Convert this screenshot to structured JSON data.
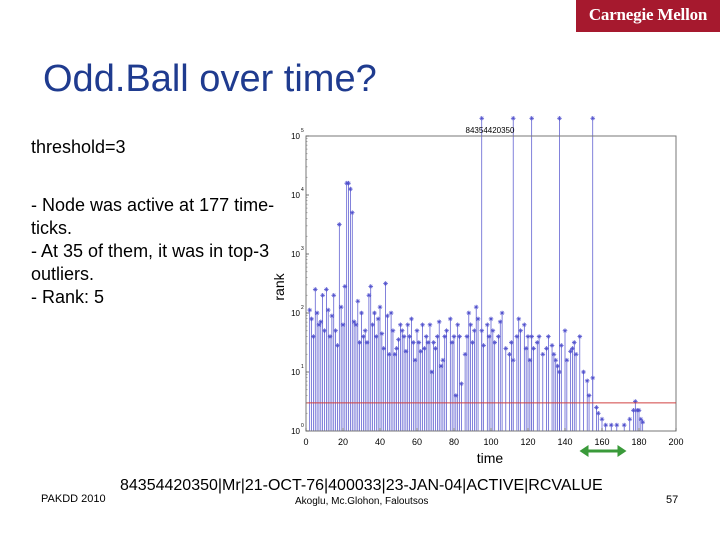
{
  "header": {
    "logo_text": "Carnegie Mellon"
  },
  "slide": {
    "title": "Odd.Ball over time?",
    "threshold": "threshold=3",
    "bullets": [
      "- Node was active at 177 time-ticks.",
      "- At 35 of them, it was in top-3 outliers.",
      "- Rank: 5"
    ],
    "caption": "84354420350|Mr|21-OCT-76|400033|23-JAN-04|ACTIVE|RCVALUE"
  },
  "footer": {
    "left": "PAKDD 2010",
    "center": "Akoglu, Mc.Glohon, Faloutsos",
    "page": "57"
  },
  "colors": {
    "title": "#1f3b8f",
    "brand": "#a6192e",
    "stems": "#4d4dcc",
    "threshold_line": "#d04040",
    "arrow": "#3a9a3a"
  },
  "chart_data": {
    "type": "scatter",
    "title": "84354420350",
    "xlabel": "time",
    "ylabel": "rank",
    "xlim": [
      0,
      200
    ],
    "ylim": [
      0,
      5
    ],
    "log_y": true,
    "x_ticks": [
      "0",
      "20",
      "40",
      "60",
      "80",
      "100",
      "120",
      "140",
      "160",
      "180",
      "200"
    ],
    "y_tick_bases": [
      "10",
      "10",
      "10",
      "10",
      "10",
      "10"
    ],
    "y_tick_exponents": [
      "0",
      "1",
      "2",
      "3",
      "4",
      "5"
    ],
    "threshold_rank": 3,
    "range_marker": [
      150,
      170
    ],
    "points": [
      [
        2,
        2.05
      ],
      [
        3,
        1.9
      ],
      [
        4,
        1.6
      ],
      [
        5,
        2.4
      ],
      [
        6,
        2.0
      ],
      [
        7,
        1.8
      ],
      [
        8,
        1.85
      ],
      [
        9,
        2.3
      ],
      [
        10,
        1.7
      ],
      [
        11,
        2.4
      ],
      [
        12,
        2.05
      ],
      [
        13,
        1.6
      ],
      [
        14,
        1.95
      ],
      [
        15,
        2.3
      ],
      [
        16,
        1.7
      ],
      [
        17,
        1.45
      ],
      [
        18,
        3.5
      ],
      [
        19,
        2.1
      ],
      [
        20,
        1.8
      ],
      [
        21,
        2.45
      ],
      [
        22,
        4.2
      ],
      [
        23,
        4.2
      ],
      [
        24,
        4.1
      ],
      [
        25,
        3.7
      ],
      [
        26,
        1.85
      ],
      [
        27,
        1.8
      ],
      [
        28,
        2.2
      ],
      [
        29,
        1.5
      ],
      [
        30,
        2.0
      ],
      [
        31,
        1.6
      ],
      [
        32,
        1.7
      ],
      [
        33,
        1.5
      ],
      [
        34,
        2.3
      ],
      [
        35,
        2.45
      ],
      [
        36,
        1.8
      ],
      [
        37,
        2.0
      ],
      [
        38,
        1.6
      ],
      [
        39,
        1.9
      ],
      [
        40,
        2.1
      ],
      [
        41,
        1.65
      ],
      [
        42,
        1.4
      ],
      [
        43,
        2.5
      ],
      [
        44,
        1.95
      ],
      [
        45,
        1.3
      ],
      [
        46,
        2.0
      ],
      [
        47,
        1.7
      ],
      [
        48,
        1.3
      ],
      [
        49,
        1.4
      ],
      [
        50,
        1.55
      ],
      [
        51,
        1.8
      ],
      [
        52,
        1.7
      ],
      [
        53,
        1.6
      ],
      [
        54,
        1.35
      ],
      [
        55,
        1.8
      ],
      [
        56,
        1.6
      ],
      [
        57,
        1.9
      ],
      [
        58,
        1.5
      ],
      [
        59,
        1.2
      ],
      [
        60,
        1.7
      ],
      [
        61,
        1.5
      ],
      [
        62,
        1.35
      ],
      [
        63,
        1.8
      ],
      [
        64,
        1.4
      ],
      [
        65,
        1.6
      ],
      [
        66,
        1.5
      ],
      [
        67,
        1.8
      ],
      [
        68,
        1.0
      ],
      [
        69,
        1.5
      ],
      [
        70,
        1.4
      ],
      [
        71,
        1.6
      ],
      [
        72,
        1.85
      ],
      [
        73,
        1.1
      ],
      [
        74,
        1.2
      ],
      [
        75,
        1.6
      ],
      [
        76,
        1.7
      ],
      [
        78,
        1.9
      ],
      [
        79,
        1.5
      ],
      [
        80,
        1.6
      ],
      [
        81,
        0.6
      ],
      [
        82,
        1.8
      ],
      [
        83,
        1.6
      ],
      [
        84,
        0.8
      ],
      [
        86,
        1.3
      ],
      [
        87,
        1.6
      ],
      [
        88,
        2.0
      ],
      [
        89,
        1.8
      ],
      [
        90,
        1.5
      ],
      [
        91,
        1.7
      ],
      [
        92,
        2.1
      ],
      [
        93,
        1.9
      ],
      [
        95,
        1.7
      ],
      [
        96,
        1.45
      ],
      [
        98,
        1.8
      ],
      [
        99,
        1.6
      ],
      [
        100,
        1.9
      ],
      [
        101,
        1.7
      ],
      [
        102,
        1.5
      ],
      [
        104,
        1.6
      ],
      [
        105,
        1.85
      ],
      [
        106,
        2.0
      ],
      [
        108,
        1.4
      ],
      [
        110,
        1.3
      ],
      [
        111,
        1.5
      ],
      [
        112,
        1.2
      ],
      [
        114,
        1.6
      ],
      [
        115,
        1.9
      ],
      [
        116,
        1.7
      ],
      [
        118,
        1.8
      ],
      [
        119,
        1.4
      ],
      [
        120,
        1.6
      ],
      [
        121,
        1.2
      ],
      [
        122,
        1.6
      ],
      [
        123,
        1.4
      ],
      [
        125,
        1.5
      ],
      [
        126,
        1.6
      ],
      [
        128,
        1.3
      ],
      [
        130,
        1.4
      ],
      [
        131,
        1.6
      ],
      [
        133,
        1.45
      ],
      [
        134,
        1.3
      ],
      [
        135,
        1.2
      ],
      [
        136,
        1.1
      ],
      [
        137,
        1.0
      ],
      [
        138,
        1.45
      ],
      [
        140,
        1.7
      ],
      [
        141,
        1.2
      ],
      [
        143,
        1.35
      ],
      [
        144,
        1.4
      ],
      [
        145,
        1.5
      ],
      [
        146,
        1.3
      ],
      [
        148,
        1.6
      ],
      [
        150,
        1.0
      ],
      [
        152,
        0.85
      ],
      [
        153,
        0.6
      ],
      [
        155,
        0.9
      ],
      [
        157,
        0.4
      ],
      [
        158,
        0.3
      ],
      [
        160,
        0.2
      ],
      [
        162,
        0.1
      ],
      [
        165,
        0.1
      ],
      [
        168,
        0.1
      ],
      [
        172,
        0.1
      ],
      [
        175,
        0.2
      ],
      [
        177,
        0.35
      ],
      [
        178,
        0.5
      ],
      [
        179,
        0.35
      ],
      [
        180,
        0.35
      ],
      [
        181,
        0.2
      ],
      [
        182,
        0.15
      ],
      [
        95,
        5.3
      ],
      [
        112,
        5.3
      ],
      [
        122,
        5.3
      ],
      [
        137,
        5.3
      ],
      [
        155,
        5.3
      ]
    ]
  }
}
